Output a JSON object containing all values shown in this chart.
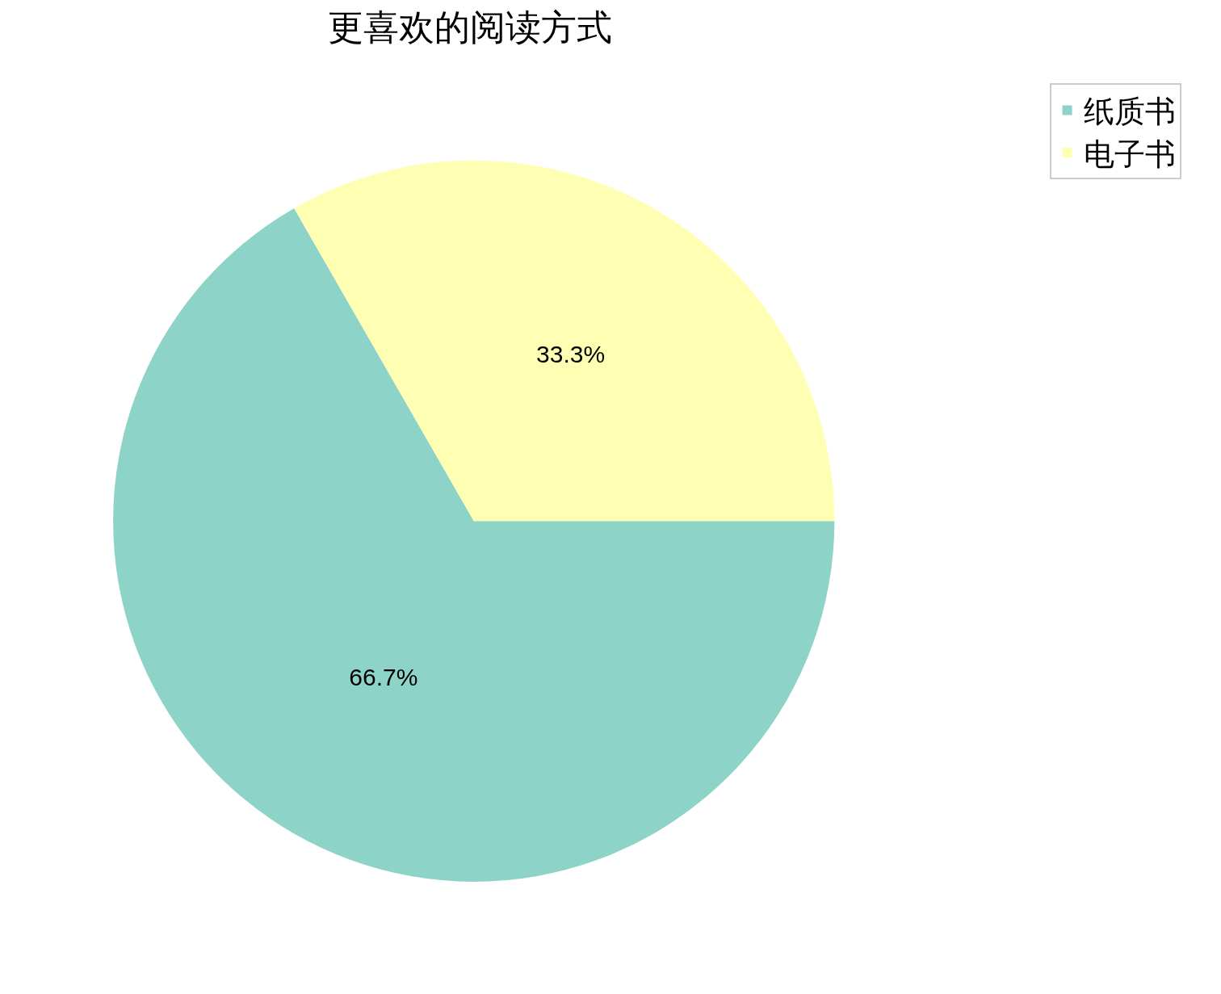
{
  "chart_data": {
    "type": "pie",
    "title": "更喜欢的阅读方式",
    "categories": [
      "纸质书",
      "电子书"
    ],
    "values": [
      66.7,
      33.3
    ],
    "colors": [
      "#8dd3c7",
      "#ffffb3"
    ],
    "value_labels": [
      "66.7%",
      "33.3%"
    ],
    "legend": "top right"
  }
}
